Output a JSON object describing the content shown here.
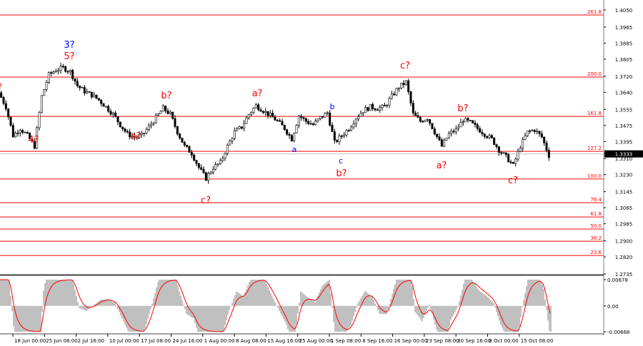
{
  "chart_data": {
    "type": "candlestick",
    "symbol_note": "",
    "price_axis": {
      "ticks": [
        "1.4050",
        "1.3965",
        "1.3885",
        "1.3805",
        "1.3720",
        "1.3640",
        "1.3555",
        "1.3475",
        "1.3395",
        "1.3310",
        "1.3230",
        "1.3145",
        "1.3065",
        "1.2985",
        "1.2900",
        "1.2820",
        "1.2735"
      ],
      "ylim": [
        1.2735,
        1.405
      ]
    },
    "current_price": "1.3333",
    "time_axis": {
      "ticks": [
        ":00",
        "18 Jun 00:00",
        "25 Jun 08:00",
        "2 Jul 16:00",
        "10 Jul 00:00",
        "17 Jul 08:00",
        "24 Jul 16:00",
        "1 Aug 00:00",
        "8 Aug 08:00",
        "15 Aug 16:00",
        "25 Aug 00:00",
        "1 Sep 08:00",
        "8 Sep 16:00",
        "16 Sep 00:00",
        "23 Sep 08:00",
        "30 Sep 16:00",
        "8 Oct 00:00",
        "15 Oct 08:00"
      ]
    },
    "closes": [
      1.3638,
      1.3567,
      1.3424,
      1.346,
      1.3424,
      1.3371,
      1.362,
      1.3727,
      1.3751,
      1.3762,
      1.3744,
      1.3673,
      1.3645,
      1.3627,
      1.3602,
      1.3567,
      1.3531,
      1.3478,
      1.3432,
      1.3417,
      1.3424,
      1.3467,
      1.3513,
      1.356,
      1.3531,
      1.3442,
      1.3371,
      1.3336,
      1.3265,
      1.3211,
      1.3265,
      1.3289,
      1.3371,
      1.3442,
      1.3467,
      1.3531,
      1.3574,
      1.3549,
      1.3524,
      1.3496,
      1.346,
      1.3407,
      1.3524,
      1.3496,
      1.3478,
      1.3513,
      1.3538,
      1.3389,
      1.3424,
      1.346,
      1.3513,
      1.3549,
      1.3567,
      1.356,
      1.3567,
      1.362,
      1.3666,
      1.3691,
      1.3531,
      1.3496,
      1.3513,
      1.3442,
      1.3371,
      1.3432,
      1.3453,
      1.3503,
      1.3489,
      1.346,
      1.3432,
      1.3407,
      1.3353,
      1.3318,
      1.3275,
      1.3371,
      1.3442,
      1.3453,
      1.3417,
      1.3325
    ],
    "fib_levels": [
      {
        "label": "261.8",
        "price": 1.4025
      },
      {
        "label": "200.0",
        "price": 1.3716
      },
      {
        "label": "161.8",
        "price": 1.352
      },
      {
        "label": "127.2",
        "price": 1.3346
      },
      {
        "label": "100.0",
        "price": 1.3208
      },
      {
        "label": "76.4",
        "price": 1.309
      },
      {
        "label": "61.8",
        "price": 1.3019
      },
      {
        "label": "50.0",
        "price": 1.2959
      },
      {
        "label": "38.2",
        "price": 1.2898
      },
      {
        "label": "23.6",
        "price": 1.2827
      }
    ],
    "wave_labels": [
      {
        "text": "?",
        "at": 0,
        "price": 1.3673,
        "color": "#ff0000"
      },
      {
        "text": "3?",
        "at": 9.7,
        "price": 1.3879,
        "color": "#0000ff"
      },
      {
        "text": "5?",
        "at": 9.7,
        "price": 1.3823,
        "color": "#ff0000"
      },
      {
        "text": "4?",
        "at": 4.7,
        "price": 1.3407,
        "color": "#ff0000"
      },
      {
        "text": "a?",
        "at": 19,
        "price": 1.3424,
        "color": "#ff0000"
      },
      {
        "text": "b?",
        "at": 23.3,
        "price": 1.3627,
        "color": "#ff0000"
      },
      {
        "text": "c?",
        "at": 28.8,
        "price": 1.3105,
        "color": "#ff0000"
      },
      {
        "text": "a?",
        "at": 36,
        "price": 1.3638,
        "color": "#ff0000"
      },
      {
        "text": "a",
        "at": 41.2,
        "price": 1.3361,
        "color": "#0000ff"
      },
      {
        "text": "b",
        "at": 46.5,
        "price": 1.3574,
        "color": "#0000ff"
      },
      {
        "text": "c",
        "at": 47.7,
        "price": 1.3304,
        "color": "#0000ff"
      },
      {
        "text": "b?",
        "at": 47.8,
        "price": 1.324,
        "color": "#ff0000"
      },
      {
        "text": "c?",
        "at": 56.7,
        "price": 1.3776,
        "color": "#ff0000"
      },
      {
        "text": "a?",
        "at": 61.8,
        "price": 1.3279,
        "color": "#ff0000"
      },
      {
        "text": "b?",
        "at": 64.8,
        "price": 1.3563,
        "color": "#ff0000"
      },
      {
        "text": "c?",
        "at": 71.8,
        "price": 1.3204,
        "color": "#ff0000"
      }
    ],
    "oscillator": {
      "ticks": [
        "0.00678",
        "0.00",
        "-0.00668"
      ],
      "ylim": [
        -0.00668,
        0.00678
      ],
      "histogram_color": "#c0c0c0",
      "signal_color": "#ff0000"
    },
    "colors": {
      "fib": "#ff0000",
      "candle": "#000000",
      "current_price_bg": "#000000"
    }
  }
}
